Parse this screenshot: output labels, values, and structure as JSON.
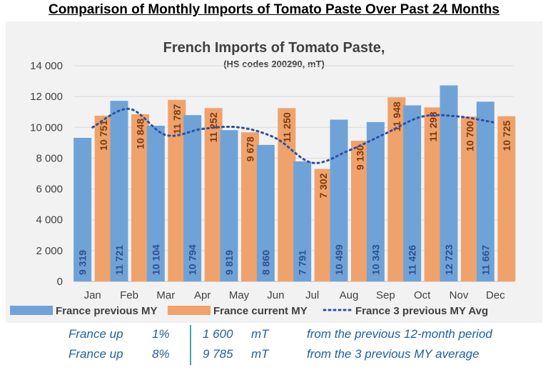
{
  "page_title": "Comparison of Monthly Imports of Tomato Paste Over Past 24 Months",
  "colors": {
    "previous": "#6fa3d8",
    "current": "#f0a26c",
    "avg": "#2e4f9e",
    "chart_bg": "#f2f2f2"
  },
  "chart_data": {
    "type": "bar",
    "title": "French Imports  of Tomato Paste,",
    "subtitle": "(HS codes 200290, mT)",
    "categories": [
      "Jan",
      "Feb",
      "Mar",
      "Apr",
      "May",
      "Jun",
      "Jul",
      "Aug",
      "Sep",
      "Oct",
      "Nov",
      "Dec"
    ],
    "ylim": [
      0,
      14000
    ],
    "yticks": [
      0,
      2000,
      4000,
      6000,
      8000,
      10000,
      12000,
      14000
    ],
    "ytick_labels": [
      "0",
      "2 000",
      "4 000",
      "6 000",
      "8 000",
      "10 000",
      "12 000",
      "14 000"
    ],
    "grid": true,
    "legend_position": "bottom",
    "series": [
      {
        "name": "France previous MY",
        "type": "bar",
        "values": [
          9319,
          11721,
          10104,
          10794,
          9819,
          8860,
          7791,
          10499,
          10343,
          11426,
          12723,
          11667
        ],
        "labels": [
          "9 319",
          "11 721",
          "10 104",
          "10 794",
          "9 819",
          "8 860",
          "7 791",
          "10 499",
          "10 343",
          "11 426",
          "12 723",
          "11 667"
        ]
      },
      {
        "name": "France current MY",
        "type": "bar",
        "values": [
          10751,
          10848,
          11787,
          11252,
          9678,
          11250,
          7302,
          9130,
          11948,
          11298,
          10700,
          10725
        ],
        "labels": [
          "10 751",
          "10 848",
          "11 787",
          "11 252",
          "9 678",
          "11 250",
          "7 302",
          "9 130",
          "11 948",
          "11 298",
          "10 700",
          "10 725"
        ]
      },
      {
        "name": "France 3 previous MY Avg",
        "type": "line",
        "values": [
          10000,
          11200,
          9500,
          9900,
          10000,
          9300,
          7700,
          8500,
          9600,
          10700,
          10700,
          10300
        ]
      }
    ]
  },
  "footer": {
    "rows": [
      {
        "label": "France up",
        "pct": "1%",
        "amount": "1 600",
        "unit": "mT",
        "note": "from the previous 12-month period"
      },
      {
        "label": "France up",
        "pct": "8%",
        "amount": "9 785",
        "unit": "mT",
        "note": "from the 3 previous MY average"
      }
    ]
  }
}
